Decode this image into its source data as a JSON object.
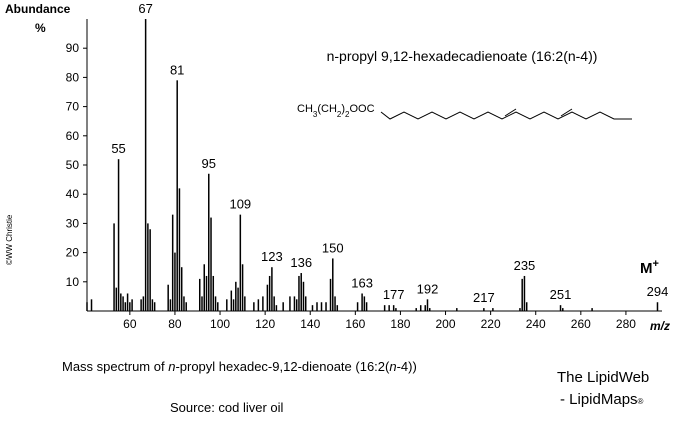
{
  "chart_data": {
    "type": "stick",
    "y_label": "Abundance",
    "y_unit": "%",
    "x_label": "m/z",
    "title": "n-propyl 9,12-hexadecadienoate  (16:2(n-4))",
    "title_color": "#1f1fcf",
    "structure_formula": [
      "CH",
      "3",
      "(CH",
      "2",
      ")",
      "2",
      "OOC"
    ],
    "molecular_ion_label": {
      "text": "M",
      "sup": "+"
    },
    "color": "#000000",
    "x": [
      41,
      43,
      53,
      54,
      55,
      56,
      57,
      58,
      59,
      60,
      61,
      65,
      66,
      67,
      68,
      69,
      70,
      71,
      77,
      78,
      79,
      80,
      81,
      82,
      83,
      84,
      85,
      91,
      92,
      93,
      94,
      95,
      96,
      97,
      98,
      99,
      103,
      105,
      106,
      107,
      108,
      109,
      110,
      111,
      115,
      117,
      119,
      121,
      122,
      123,
      124,
      125,
      128,
      131,
      133,
      134,
      135,
      136,
      137,
      138,
      141,
      143,
      145,
      147,
      149,
      150,
      151,
      152,
      161,
      163,
      164,
      165,
      173,
      175,
      177,
      178,
      187,
      189,
      191,
      192,
      193,
      205,
      217,
      221,
      233,
      234,
      235,
      236,
      251,
      252,
      265,
      294
    ],
    "values": [
      3,
      4,
      30,
      8,
      52,
      6,
      5,
      3,
      6,
      3,
      4,
      4,
      5,
      100,
      30,
      28,
      4,
      3,
      9,
      4,
      33,
      20,
      79,
      42,
      15,
      5,
      3,
      11,
      5,
      16,
      12,
      47,
      32,
      12,
      5,
      3,
      4,
      7,
      4,
      10,
      8,
      33,
      16,
      5,
      3,
      4,
      5,
      9,
      12,
      15,
      5,
      2,
      3,
      5,
      5,
      4,
      12,
      13,
      10,
      5,
      2,
      3,
      3,
      3,
      11,
      18,
      5,
      2,
      3,
      6,
      5,
      3,
      2,
      2,
      2,
      1,
      1,
      2,
      2,
      4,
      1,
      1,
      1,
      1,
      1,
      11,
      12,
      3,
      2,
      1,
      1,
      3
    ],
    "peak_labels": [
      55,
      67,
      81,
      95,
      109,
      123,
      136,
      150,
      163,
      177,
      192,
      217,
      235,
      251,
      294
    ],
    "xlim": [
      41,
      296
    ],
    "ylim": [
      0,
      100
    ],
    "xticks": [
      60,
      80,
      100,
      120,
      140,
      160,
      180,
      200,
      220,
      240,
      260,
      280
    ],
    "yticks": [
      10,
      20,
      30,
      40,
      50,
      60,
      70,
      80,
      90
    ]
  },
  "copyright": "©WW Christie",
  "caption": [
    "Mass spectrum of ",
    "n",
    "-propyl hexadec-9,12-dienoate (16:2(",
    "n",
    "-4))"
  ],
  "source": "Source: cod liver oil",
  "credit": {
    "line1": "The LipidWeb",
    "line2": "- LipidMaps",
    "mark": "®"
  }
}
